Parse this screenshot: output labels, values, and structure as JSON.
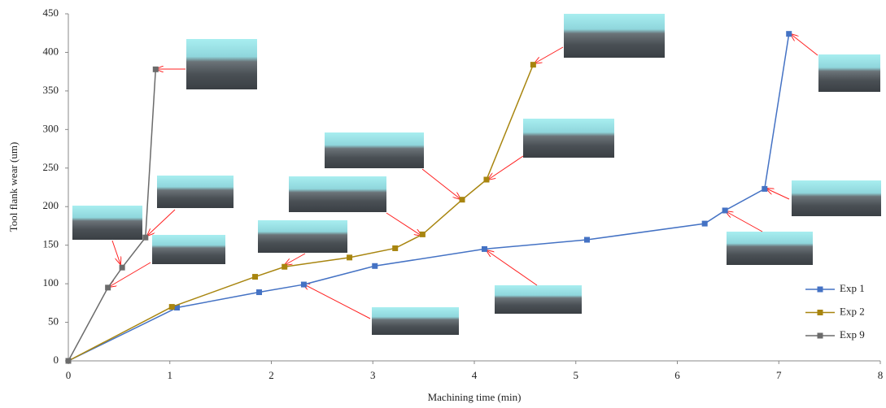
{
  "chart_data": {
    "type": "line",
    "xlabel": "Machining time (min)",
    "ylabel": "Tool flank wear (um)",
    "xlim": [
      0,
      8
    ],
    "xticks": [
      0,
      1,
      2,
      3,
      4,
      5,
      6,
      7,
      8
    ],
    "ylim": [
      0,
      450
    ],
    "yticks": [
      0,
      50,
      100,
      150,
      200,
      250,
      300,
      350,
      400,
      450
    ],
    "grid": false,
    "legend": "lower right",
    "series": [
      {
        "name": "Exp 1",
        "color": "#4472c4",
        "x": [
          0,
          1.07,
          1.88,
          2.32,
          3.02,
          4.1,
          5.11,
          6.27,
          6.47,
          6.86,
          7.1
        ],
        "values": [
          0,
          69,
          89,
          99,
          123,
          145,
          157,
          178,
          195,
          223,
          424
        ]
      },
      {
        "name": "Exp 2",
        "color": "#a8850f",
        "x": [
          0,
          1.02,
          1.84,
          2.13,
          2.77,
          3.22,
          3.49,
          3.88,
          4.12,
          4.58
        ],
        "values": [
          0,
          70,
          109,
          122,
          134,
          146,
          164,
          209,
          235,
          384
        ]
      },
      {
        "name": "Exp 9",
        "color": "#6b6b6b",
        "x": [
          0,
          0.39,
          0.53,
          0.76,
          0.86
        ],
        "values": [
          0,
          95,
          121,
          160,
          378
        ]
      }
    ]
  }
}
